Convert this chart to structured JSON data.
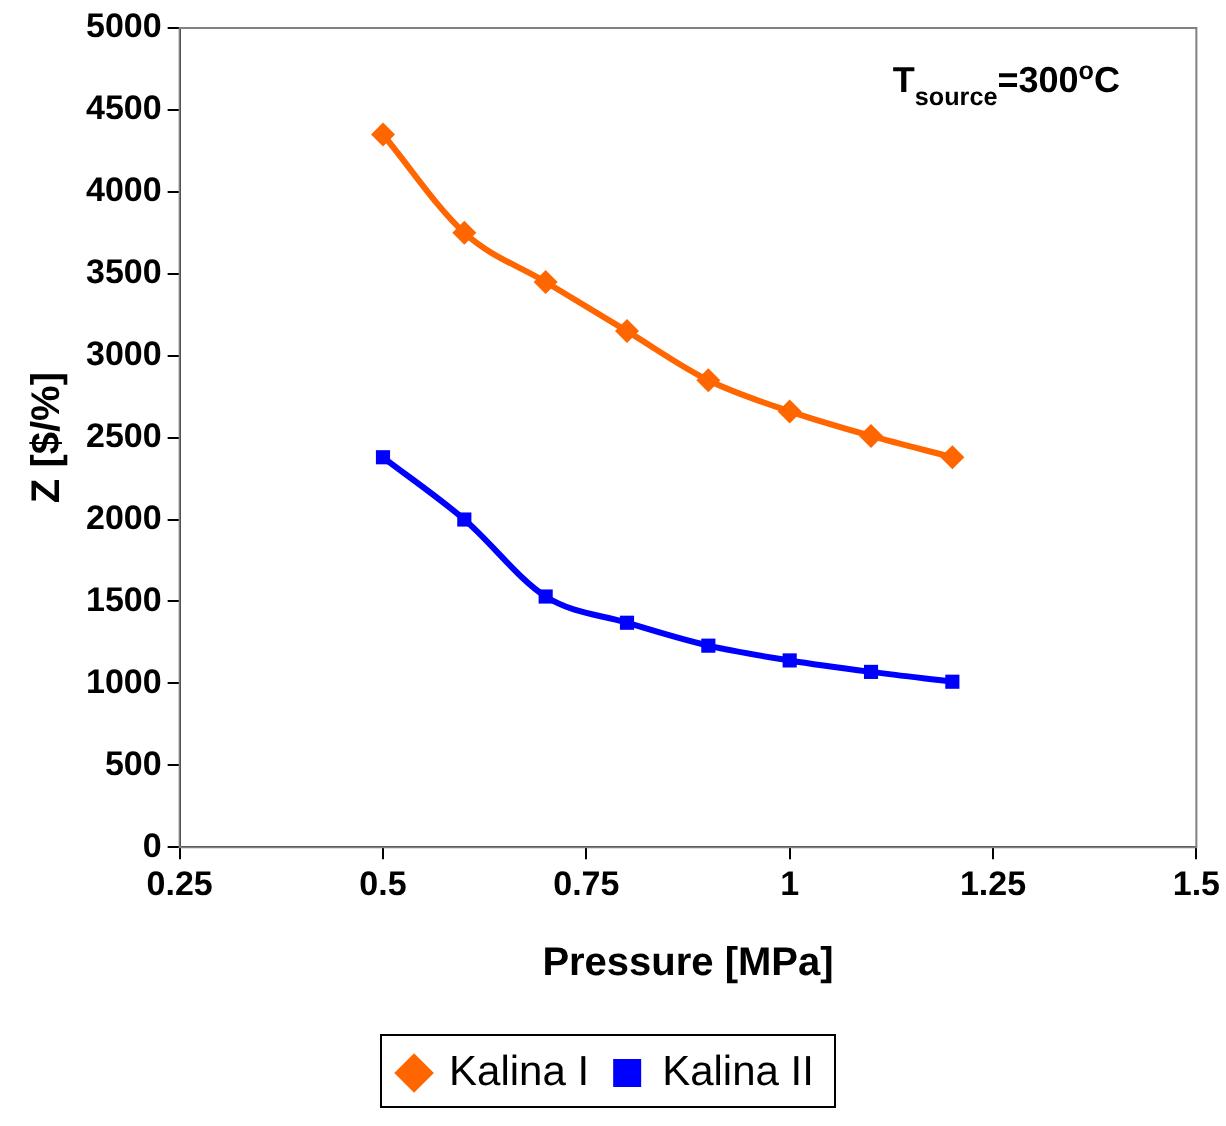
{
  "chart_data": {
    "type": "line",
    "xlabel": "Pressure [MPa]",
    "ylabel": "Z [$/%]",
    "annotations": [
      "T$_{source}$=300$^{o}$C"
    ],
    "x": [
      0.5,
      0.6,
      0.7,
      0.8,
      0.9,
      1.0,
      1.1,
      1.2
    ],
    "series": [
      {
        "name": "Kalina I",
        "color": "#ff6600",
        "marker": "diamond",
        "values": [
          4350,
          3750,
          3450,
          3150,
          2850,
          2660,
          2510,
          2380
        ]
      },
      {
        "name": "Kalina II",
        "color": "#0000ff",
        "marker": "square",
        "values": [
          2380,
          2000,
          1530,
          1370,
          1230,
          1140,
          1070,
          1010
        ]
      }
    ],
    "xlim": [
      0.25,
      1.5
    ],
    "xticks": [
      0.25,
      0.5,
      0.75,
      1,
      1.25,
      1.5
    ],
    "ylim": [
      0,
      5000
    ],
    "yticks": [
      0,
      500,
      1000,
      1500,
      2000,
      2500,
      3000,
      3500,
      4000,
      4500,
      5000
    ],
    "grid": false,
    "legend": "bottom",
    "line_style": "solid"
  }
}
